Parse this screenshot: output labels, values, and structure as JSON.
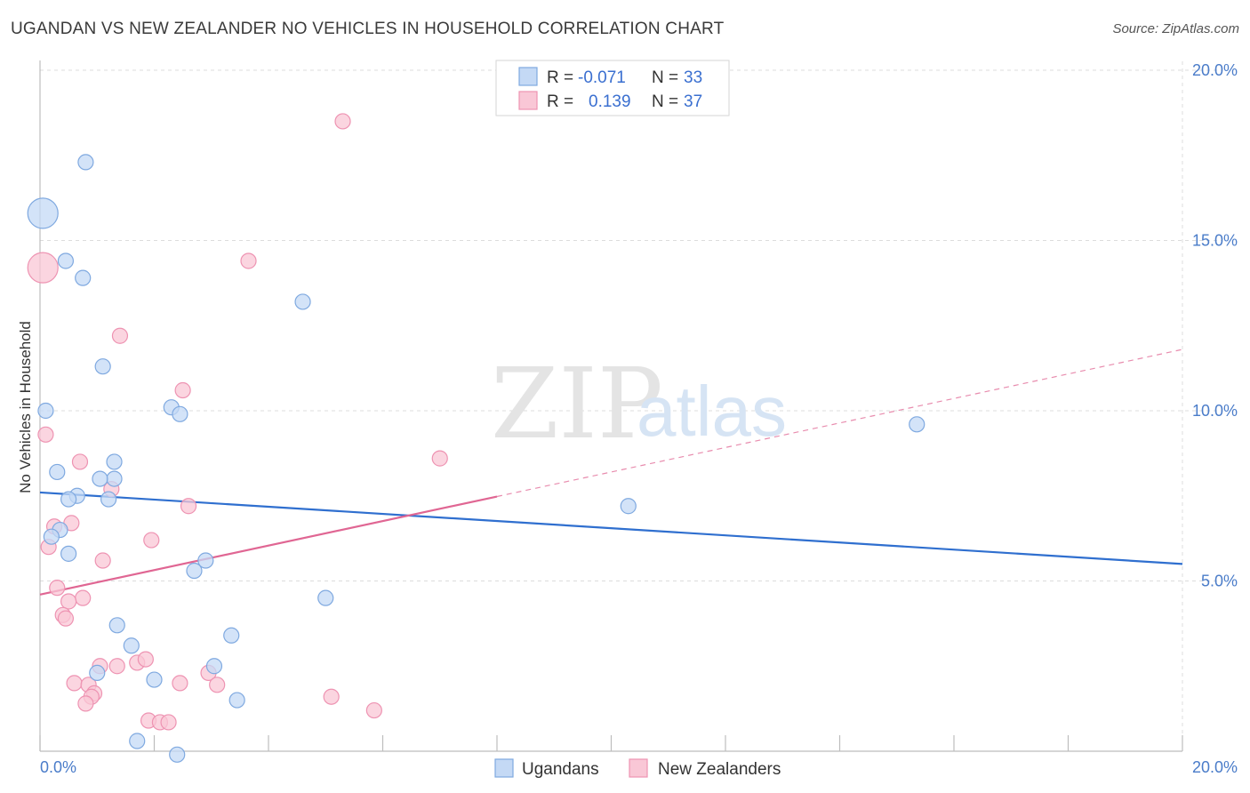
{
  "title": "UGANDAN VS NEW ZEALANDER NO VEHICLES IN HOUSEHOLD CORRELATION CHART",
  "source": "Source: ZipAtlas.com",
  "watermark": {
    "part1": "ZIP",
    "part2": "atlas"
  },
  "colors": {
    "blue_fill": "#c4d9f5",
    "blue_stroke": "#7fa9e0",
    "blue_line": "#2f6fcf",
    "pink_fill": "#f9c7d6",
    "pink_stroke": "#ee93b2",
    "pink_line": "#e06693",
    "tick_text": "#4a7cc9"
  },
  "legend": {
    "rows": [
      {
        "r_label": "R =",
        "r_value": "-0.071",
        "n_label": "N =",
        "n_value": "33"
      },
      {
        "r_label": "R =",
        "r_value": "0.139",
        "n_label": "N =",
        "n_value": "37"
      }
    ]
  },
  "bottom_legend": {
    "series1": "Ugandans",
    "series2": "New Zealanders"
  },
  "chart_data": {
    "type": "scatter",
    "xlabel": "",
    "ylabel": "No Vehicles in Household",
    "xlim": [
      0,
      20
    ],
    "ylim": [
      0,
      20
    ],
    "x_tick_labels": [
      "0.0%",
      "20.0%"
    ],
    "y_tick_labels": [
      "5.0%",
      "10.0%",
      "15.0%",
      "20.0%"
    ],
    "y_ticks": [
      5,
      10,
      15,
      20
    ],
    "grid": true,
    "series": [
      {
        "name": "Ugandans",
        "r": -0.071,
        "n": 33,
        "trend": {
          "x0": 0,
          "y0": 7.6,
          "x1": 20,
          "y1": 5.5,
          "x_solid_end": 20
        },
        "points": [
          {
            "x": 0.05,
            "y": 15.8,
            "big": true
          },
          {
            "x": 0.8,
            "y": 17.3
          },
          {
            "x": 0.45,
            "y": 14.4
          },
          {
            "x": 0.75,
            "y": 13.9
          },
          {
            "x": 4.6,
            "y": 13.2
          },
          {
            "x": 1.1,
            "y": 11.3
          },
          {
            "x": 0.1,
            "y": 10.0
          },
          {
            "x": 2.3,
            "y": 10.1
          },
          {
            "x": 2.45,
            "y": 9.9
          },
          {
            "x": 15.35,
            "y": 9.6
          },
          {
            "x": 1.3,
            "y": 8.5
          },
          {
            "x": 0.3,
            "y": 8.2
          },
          {
            "x": 1.3,
            "y": 8.0
          },
          {
            "x": 1.05,
            "y": 8.0
          },
          {
            "x": 0.65,
            "y": 7.5
          },
          {
            "x": 0.5,
            "y": 7.4
          },
          {
            "x": 1.2,
            "y": 7.4
          },
          {
            "x": 10.3,
            "y": 7.2
          },
          {
            "x": 0.35,
            "y": 6.5
          },
          {
            "x": 0.2,
            "y": 6.3
          },
          {
            "x": 0.5,
            "y": 5.8
          },
          {
            "x": 2.9,
            "y": 5.6
          },
          {
            "x": 2.7,
            "y": 5.3
          },
          {
            "x": 5.0,
            "y": 4.5
          },
          {
            "x": 1.35,
            "y": 3.7
          },
          {
            "x": 3.35,
            "y": 3.4
          },
          {
            "x": 1.6,
            "y": 3.1
          },
          {
            "x": 3.05,
            "y": 2.5
          },
          {
            "x": 1.0,
            "y": 2.3
          },
          {
            "x": 2.0,
            "y": 2.1
          },
          {
            "x": 3.45,
            "y": 1.5
          },
          {
            "x": 1.7,
            "y": 0.3
          },
          {
            "x": 2.4,
            "y": -0.1
          }
        ]
      },
      {
        "name": "New Zealanders",
        "r": 0.139,
        "n": 37,
        "trend": {
          "x0": 0,
          "y0": 4.6,
          "x1": 20,
          "y1": 11.8,
          "x_solid_end": 8.0
        },
        "points": [
          {
            "x": 0.05,
            "y": 14.2,
            "big": true
          },
          {
            "x": 5.3,
            "y": 18.5
          },
          {
            "x": 3.65,
            "y": 14.4
          },
          {
            "x": 1.4,
            "y": 12.2
          },
          {
            "x": 2.5,
            "y": 10.6
          },
          {
            "x": 0.1,
            "y": 9.3
          },
          {
            "x": 0.7,
            "y": 8.5
          },
          {
            "x": 7.0,
            "y": 8.6
          },
          {
            "x": 1.25,
            "y": 7.7
          },
          {
            "x": 2.6,
            "y": 7.2
          },
          {
            "x": 0.55,
            "y": 6.7
          },
          {
            "x": 0.25,
            "y": 6.6
          },
          {
            "x": 1.95,
            "y": 6.2
          },
          {
            "x": 0.15,
            "y": 6.0
          },
          {
            "x": 1.1,
            "y": 5.6
          },
          {
            "x": 0.3,
            "y": 4.8
          },
          {
            "x": 0.75,
            "y": 4.5
          },
          {
            "x": 0.5,
            "y": 4.4
          },
          {
            "x": 0.4,
            "y": 4.0
          },
          {
            "x": 0.45,
            "y": 3.9
          },
          {
            "x": 1.05,
            "y": 2.5
          },
          {
            "x": 1.35,
            "y": 2.5
          },
          {
            "x": 1.7,
            "y": 2.6
          },
          {
            "x": 1.85,
            "y": 2.7
          },
          {
            "x": 2.95,
            "y": 2.3
          },
          {
            "x": 0.6,
            "y": 2.0
          },
          {
            "x": 0.85,
            "y": 1.95
          },
          {
            "x": 2.45,
            "y": 2.0
          },
          {
            "x": 3.1,
            "y": 1.95
          },
          {
            "x": 0.95,
            "y": 1.7
          },
          {
            "x": 0.9,
            "y": 1.6
          },
          {
            "x": 5.1,
            "y": 1.6
          },
          {
            "x": 0.8,
            "y": 1.4
          },
          {
            "x": 5.85,
            "y": 1.2
          },
          {
            "x": 1.9,
            "y": 0.9
          },
          {
            "x": 2.1,
            "y": 0.85
          },
          {
            "x": 2.25,
            "y": 0.85
          }
        ]
      }
    ]
  }
}
